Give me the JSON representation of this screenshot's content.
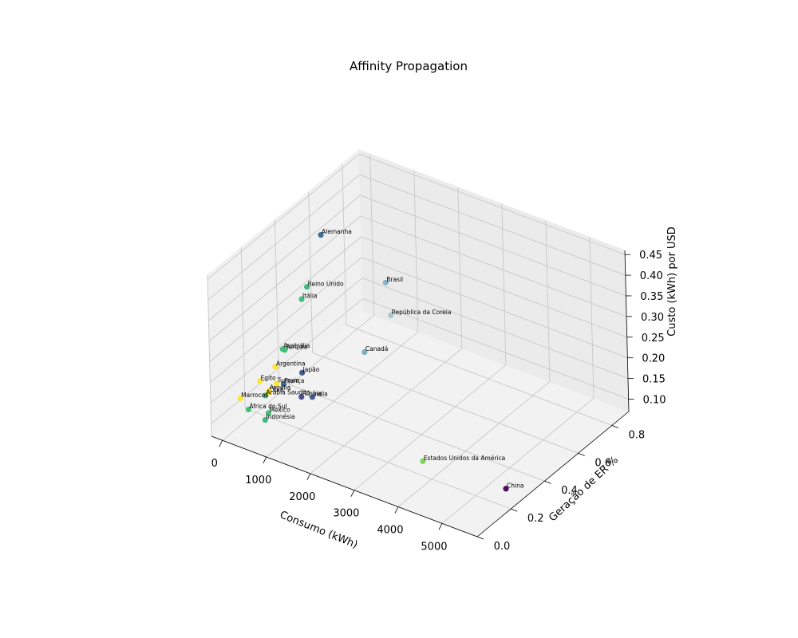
{
  "chart_data": {
    "type": "scatter",
    "projection": "3d",
    "title": "Affinity Propagation",
    "xlabel": "Consumo (kWh)",
    "ylabel": "Geração de ER %",
    "zlabel": "Custo (kWh) por USD",
    "xlim": [
      -250,
      5800
    ],
    "ylim": [
      0,
      0.9
    ],
    "zlim": [
      0.07,
      0.46
    ],
    "xticks": [
      0,
      1000,
      2000,
      3000,
      4000,
      5000
    ],
    "xtick_labels": [
      "0",
      "1000",
      "2000",
      "3000",
      "4000",
      "5000"
    ],
    "yticks": [
      0.0,
      0.2,
      0.4,
      0.6,
      0.8
    ],
    "ytick_labels": [
      "0.0",
      "0.2",
      "0.4",
      "0.6",
      "0.8"
    ],
    "zticks": [
      0.1,
      0.15,
      0.2,
      0.25,
      0.3,
      0.35,
      0.4,
      0.45
    ],
    "ztick_labels": [
      "0.10",
      "0.15",
      "0.20",
      "0.25",
      "0.30",
      "0.35",
      "0.40",
      "0.45"
    ],
    "grid": true,
    "colormap": "viridis",
    "points": [
      {
        "label": "Alemanha",
        "x": 600,
        "y": 0.45,
        "z": 0.44,
        "color": "#31688e"
      },
      {
        "label": "Reino Unido",
        "x": 330,
        "y": 0.43,
        "z": 0.31,
        "color": "#35b779"
      },
      {
        "label": "Itália",
        "x": 320,
        "y": 0.4,
        "z": 0.29,
        "color": "#3cbc75"
      },
      {
        "label": "Brasil",
        "x": 600,
        "y": 0.82,
        "z": 0.2,
        "color": "#7fb3c4"
      },
      {
        "label": "República da Coreia",
        "x": 580,
        "y": 0.85,
        "z": 0.11,
        "color": "#a9c4cc"
      },
      {
        "label": "Canadá",
        "x": 630,
        "y": 0.68,
        "z": 0.08,
        "color": "#78a9bf"
      },
      {
        "label": "Austrália",
        "x": 250,
        "y": 0.3,
        "z": 0.2,
        "color": "#40bd72"
      },
      {
        "label": "Turquia",
        "x": 300,
        "y": 0.3,
        "z": 0.2,
        "color": "#3aba76"
      },
      {
        "label": "Argentina",
        "x": 150,
        "y": 0.28,
        "z": 0.16,
        "color": "#fde725"
      },
      {
        "label": "Japão",
        "x": 1000,
        "y": 0.22,
        "z": 0.2,
        "color": "#3b528b"
      },
      {
        "label": "França",
        "x": 450,
        "y": 0.25,
        "z": 0.14,
        "color": "#31688e"
      },
      {
        "label": "Rússia",
        "x": 1050,
        "y": 0.2,
        "z": 0.15,
        "color": "#414487"
      },
      {
        "label": "Índia",
        "x": 1300,
        "y": 0.2,
        "z": 0.16,
        "color": "#3b528b"
      },
      {
        "label": "Turquia",
        "x": 90,
        "y": 0.3,
        "z": 0.11,
        "color": "#fde725"
      },
      {
        "label": "Egito",
        "x": 180,
        "y": 0.18,
        "z": 0.16,
        "color": "#fde725"
      },
      {
        "label": "Líbia",
        "x": 60,
        "y": 0.26,
        "z": 0.1,
        "color": "#fde725"
      },
      {
        "label": "Argélia",
        "x": 70,
        "y": 0.26,
        "z": 0.105,
        "color": "#fde725"
      },
      {
        "label": "Arábia Saudita",
        "x": 300,
        "y": 0.18,
        "z": 0.13,
        "color": "#35b779"
      },
      {
        "label": "Marrocos",
        "x": 40,
        "y": 0.1,
        "z": 0.14,
        "color": "#fde725"
      },
      {
        "label": "África do Sul",
        "x": 300,
        "y": 0.08,
        "z": 0.13,
        "color": "#3cbc75"
      },
      {
        "label": "México",
        "x": 600,
        "y": 0.12,
        "z": 0.12,
        "color": "#3cbc75"
      },
      {
        "label": "Indonésia",
        "x": 600,
        "y": 0.1,
        "z": 0.11,
        "color": "#35b779"
      },
      {
        "label": "Estados Unidos da América",
        "x": 4000,
        "y": 0.15,
        "z": 0.13,
        "color": "#7ad151"
      },
      {
        "label": "China",
        "x": 5500,
        "y": 0.25,
        "z": 0.09,
        "color": "#440154"
      }
    ]
  }
}
